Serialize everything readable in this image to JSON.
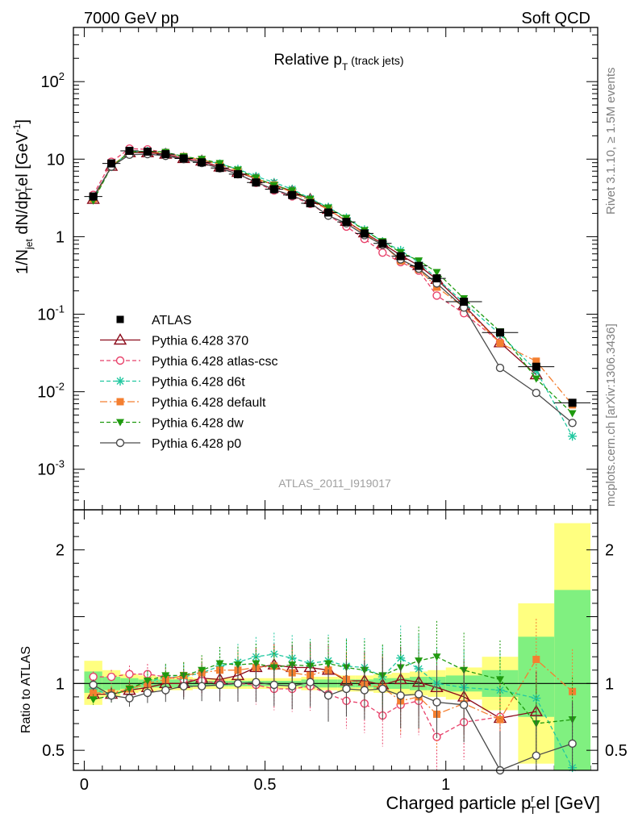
{
  "header": {
    "left": "7000 GeV pp",
    "right": "Soft QCD"
  },
  "title": {
    "main": "Relative p",
    "sub": "T",
    "suffix": " (track jets)"
  },
  "ylabel": {
    "a": "1/N",
    "b": "jet",
    "c": " dN/dp",
    "d": "r",
    "e": "T",
    "f": "el [GeV",
    "g": "-1",
    "h": "]"
  },
  "ratio_ylabel": "Ratio to ATLAS",
  "xlabel": {
    "a": "Charged particle p",
    "b": "r",
    "c": "T",
    "d": "el [GeV]"
  },
  "analysis_id": "ATLAS_2011_I919017",
  "side_text": {
    "rivet": "Rivet 3.1.10, ≥ 1.5M events",
    "mcplots": "mcplots.cern.ch [arXiv:1306.3436]"
  },
  "colors": {
    "atlas": "#000000",
    "p370": "#8b0a1a",
    "atlas_csc": "#e8416a",
    "d6t": "#21c8a0",
    "default": "#f47f30",
    "dw": "#1f9a0f",
    "p0": "#4a4a4a",
    "band_yellow": "#ffff80",
    "band_green": "#80f080"
  },
  "chart_data": {
    "type": "line",
    "main_y_log": true,
    "main_ylim": [
      0.0003,
      500
    ],
    "ratio_ylim": [
      0.35,
      2.3
    ],
    "xlim": [
      -0.03,
      1.42
    ],
    "x_ticks": [
      {
        "v": 0,
        "label": "0"
      },
      {
        "v": 0.5,
        "label": "0.5"
      },
      {
        "v": 1,
        "label": "1"
      }
    ],
    "y_ticks": [
      {
        "v": 0.001,
        "base": "10",
        "exp": "-3"
      },
      {
        "v": 0.01,
        "base": "10",
        "exp": "-2"
      },
      {
        "v": 0.1,
        "base": "10",
        "exp": "-1"
      },
      {
        "v": 1,
        "base": "1",
        "exp": ""
      },
      {
        "v": 10,
        "base": "10",
        "exp": ""
      },
      {
        "v": 100,
        "base": "10",
        "exp": "2"
      }
    ],
    "ratio_ticks": [
      {
        "v": 0.5,
        "label": "0.5"
      },
      {
        "v": 1,
        "label": "1"
      },
      {
        "v": 2,
        "label": "2"
      }
    ],
    "x": [
      0.025,
      0.075,
      0.125,
      0.175,
      0.225,
      0.275,
      0.325,
      0.375,
      0.425,
      0.475,
      0.525,
      0.575,
      0.625,
      0.675,
      0.725,
      0.775,
      0.825,
      0.875,
      0.925,
      0.975,
      1.05,
      1.15,
      1.25,
      1.35
    ],
    "bins": [
      [
        0.0,
        0.05
      ],
      [
        0.05,
        0.1
      ],
      [
        0.1,
        0.15
      ],
      [
        0.15,
        0.2
      ],
      [
        0.2,
        0.25
      ],
      [
        0.25,
        0.3
      ],
      [
        0.3,
        0.35
      ],
      [
        0.35,
        0.4
      ],
      [
        0.4,
        0.45
      ],
      [
        0.45,
        0.5
      ],
      [
        0.5,
        0.55
      ],
      [
        0.55,
        0.6
      ],
      [
        0.6,
        0.65
      ],
      [
        0.65,
        0.7
      ],
      [
        0.7,
        0.75
      ],
      [
        0.75,
        0.8
      ],
      [
        0.8,
        0.85
      ],
      [
        0.85,
        0.9
      ],
      [
        0.9,
        0.95
      ],
      [
        0.95,
        1.0
      ],
      [
        1.0,
        1.1
      ],
      [
        1.1,
        1.2
      ],
      [
        1.2,
        1.3
      ],
      [
        1.3,
        1.4
      ]
    ],
    "band_yellow": [
      [
        0.84,
        1.17
      ],
      [
        0.9,
        1.1
      ],
      [
        0.93,
        1.07
      ],
      [
        0.94,
        1.06
      ],
      [
        0.95,
        1.05
      ],
      [
        0.95,
        1.05
      ],
      [
        0.96,
        1.04
      ],
      [
        0.96,
        1.04
      ],
      [
        0.96,
        1.04
      ],
      [
        0.96,
        1.04
      ],
      [
        0.96,
        1.04
      ],
      [
        0.96,
        1.04
      ],
      [
        0.95,
        1.05
      ],
      [
        0.95,
        1.05
      ],
      [
        0.94,
        1.06
      ],
      [
        0.94,
        1.06
      ],
      [
        0.93,
        1.07
      ],
      [
        0.92,
        1.08
      ],
      [
        0.91,
        1.09
      ],
      [
        0.9,
        1.1
      ],
      [
        0.88,
        1.12
      ],
      [
        0.8,
        1.2
      ],
      [
        0.4,
        1.6
      ],
      [
        0.35,
        2.2
      ]
    ],
    "band_green": [
      [
        0.93,
        1.09
      ],
      [
        0.95,
        1.05
      ],
      [
        0.96,
        1.04
      ],
      [
        0.97,
        1.03
      ],
      [
        0.97,
        1.03
      ],
      [
        0.97,
        1.03
      ],
      [
        0.98,
        1.02
      ],
      [
        0.98,
        1.02
      ],
      [
        0.98,
        1.02
      ],
      [
        0.98,
        1.02
      ],
      [
        0.98,
        1.02
      ],
      [
        0.98,
        1.02
      ],
      [
        0.97,
        1.03
      ],
      [
        0.97,
        1.03
      ],
      [
        0.97,
        1.03
      ],
      [
        0.97,
        1.03
      ],
      [
        0.96,
        1.04
      ],
      [
        0.96,
        1.04
      ],
      [
        0.95,
        1.05
      ],
      [
        0.95,
        1.05
      ],
      [
        0.94,
        1.06
      ],
      [
        0.9,
        1.1
      ],
      [
        0.75,
        1.35
      ],
      [
        0.35,
        1.7
      ]
    ],
    "atlas": [
      3.3,
      8.8,
      12.8,
      12.5,
      11.6,
      10.2,
      9.1,
      7.7,
      6.4,
      5.0,
      4.1,
      3.45,
      2.7,
      2.05,
      1.55,
      1.1,
      0.82,
      0.56,
      0.42,
      0.29,
      0.145,
      0.058,
      0.021,
      0.0072
    ],
    "series": [
      {
        "name": "Pythia 6.428 370",
        "key": "p370",
        "marker": "triangle-open",
        "dash": "",
        "ratio": [
          0.92,
          0.92,
          0.95,
          0.97,
          1.0,
          1.0,
          1.04,
          1.03,
          1.06,
          1.12,
          1.14,
          1.12,
          1.12,
          1.1,
          1.02,
          1.02,
          0.99,
          1.03,
          1.01,
          0.97,
          0.9,
          0.74,
          0.79,
          null
        ]
      },
      {
        "name": "Pythia 6.428 atlas-csc",
        "key": "atlas_csc",
        "marker": "circle-open",
        "dash": "5,3",
        "ratio": [
          1.05,
          1.05,
          1.07,
          1.07,
          1.05,
          1.03,
          1.02,
          1.0,
          1.0,
          0.99,
          0.96,
          0.96,
          0.98,
          0.92,
          0.87,
          0.85,
          0.76,
          0.84,
          0.87,
          0.6,
          0.71,
          0.75,
          null,
          null
        ]
      },
      {
        "name": "Pythia 6.428 d6t",
        "key": "d6t",
        "marker": "star",
        "dash": "5,3",
        "ratio": [
          0.96,
          0.91,
          0.96,
          1.01,
          1.05,
          1.05,
          1.08,
          1.13,
          1.16,
          1.2,
          1.22,
          1.19,
          1.15,
          1.17,
          1.13,
          1.12,
          1.05,
          1.19,
          1.11,
          1.0,
          0.97,
          0.95,
          0.89,
          0.37
        ]
      },
      {
        "name": "Pythia 6.428 default",
        "key": "default",
        "marker": "square",
        "dash": "9,3,2,3",
        "ratio": [
          0.93,
          0.93,
          0.96,
          1.0,
          1.03,
          1.06,
          1.08,
          1.1,
          1.1,
          1.12,
          1.13,
          1.08,
          1.06,
          1.1,
          1.03,
          0.99,
          0.97,
          0.87,
          0.9,
          0.77,
          0.85,
          0.73,
          1.18,
          0.94
        ]
      },
      {
        "name": "Pythia 6.428 dw",
        "key": "dw",
        "marker": "triangle-down",
        "dash": "5,3",
        "ratio": [
          0.88,
          0.91,
          0.96,
          1.02,
          1.06,
          1.06,
          1.1,
          1.15,
          1.14,
          1.15,
          1.12,
          1.14,
          1.13,
          1.15,
          1.12,
          1.1,
          1.06,
          1.12,
          1.17,
          1.2,
          1.1,
          1.03,
          0.7,
          0.73
        ]
      },
      {
        "name": "Pythia 6.428 p0",
        "key": "p0",
        "marker": "circle-open",
        "dash": "",
        "ratio": [
          0.99,
          0.91,
          0.89,
          0.93,
          0.95,
          0.98,
          0.98,
          0.99,
          1.0,
          1.01,
          0.99,
          0.98,
          1.01,
          0.91,
          0.96,
          0.95,
          0.96,
          0.91,
          0.92,
          0.86,
          0.84,
          0.35,
          0.46,
          0.55
        ]
      }
    ]
  }
}
